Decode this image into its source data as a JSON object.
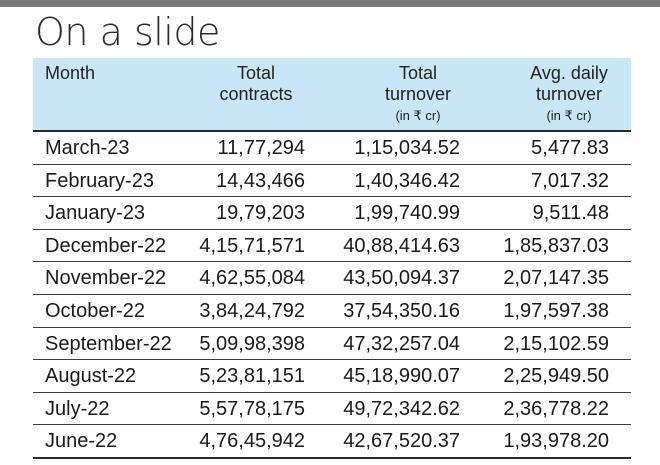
{
  "title": "On a slide",
  "headers": {
    "month": "Month",
    "contracts": [
      "Total",
      "contracts"
    ],
    "turnover": [
      "Total",
      "turnover"
    ],
    "turnover_unit": "(in ₹ cr)",
    "avg": [
      "Avg. daily",
      "turnover"
    ],
    "avg_unit": "(in ₹ cr)"
  },
  "rows": [
    {
      "month": "March-23",
      "contracts": "11,77,294",
      "turnover": "1,15,034.52",
      "avg": "5,477.83"
    },
    {
      "month": "February-23",
      "contracts": "14,43,466",
      "turnover": "1,40,346.42",
      "avg": "7,017.32"
    },
    {
      "month": "January-23",
      "contracts": "19,79,203",
      "turnover": "1,99,740.99",
      "avg": "9,511.48"
    },
    {
      "month": "December-22",
      "contracts": "4,15,71,571",
      "turnover": "40,88,414.63",
      "avg": "1,85,837.03"
    },
    {
      "month": "November-22",
      "contracts": "4,62,55,084",
      "turnover": "43,50,094.37",
      "avg": "2,07,147.35"
    },
    {
      "month": "October-22",
      "contracts": "3,84,24,792",
      "turnover": "37,54,350.16",
      "avg": "1,97,597.38"
    },
    {
      "month": "September-22",
      "contracts": "5,09,98,398",
      "turnover": "47,32,257.04",
      "avg": "2,15,102.59"
    },
    {
      "month": "August-22",
      "contracts": "5,23,81,151",
      "turnover": "45,18,990.07",
      "avg": "2,25,949.50"
    },
    {
      "month": "July-22",
      "contracts": "5,57,78,175",
      "turnover": "49,72,342.62",
      "avg": "2,36,778.22"
    },
    {
      "month": "June-22",
      "contracts": "4,76,45,942",
      "turnover": "42,67,520.37",
      "avg": "1,93,978.20"
    }
  ],
  "colors": {
    "header_bg": "#c8e6f6",
    "top_bar": "#7a7a7a"
  }
}
